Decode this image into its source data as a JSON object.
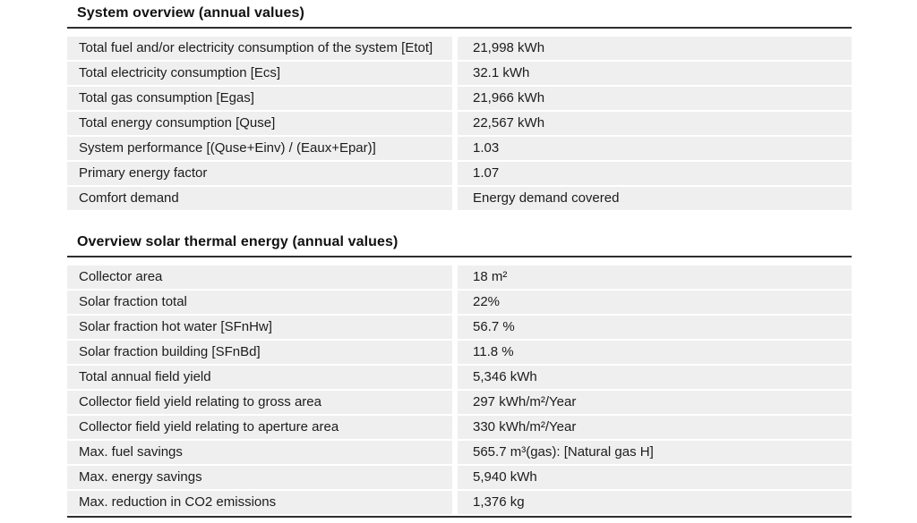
{
  "colors": {
    "row_background": "#efefef",
    "text": "#1c1c1c",
    "rule": "#2e2e2e",
    "page_background": "#ffffff"
  },
  "tables": [
    {
      "title": "System overview (annual values)",
      "rows": [
        {
          "label": "Total fuel and/or electricity consumption of the system [Etot]",
          "value": "21,998 kWh"
        },
        {
          "label": "Total electricity consumption [Ecs]",
          "value": "32.1 kWh"
        },
        {
          "label": "Total gas consumption [Egas]",
          "value": "21,966 kWh"
        },
        {
          "label": "Total energy consumption [Quse]",
          "value": "22,567 kWh"
        },
        {
          "label": "System performance [(Quse+Einv) / (Eaux+Epar)]",
          "value": "1.03"
        },
        {
          "label": "Primary energy factor",
          "value": "1.07"
        },
        {
          "label": "Comfort demand",
          "value": "Energy demand covered"
        }
      ]
    },
    {
      "title": "Overview solar thermal energy (annual values)",
      "rows": [
        {
          "label": "Collector area",
          "value": "18 m²"
        },
        {
          "label": "Solar fraction total",
          "value": "22%"
        },
        {
          "label": "Solar fraction hot water [SFnHw]",
          "value": "56.7 %"
        },
        {
          "label": "Solar fraction building [SFnBd]",
          "value": "11.8 %"
        },
        {
          "label": "Total annual field yield",
          "value": "5,346 kWh"
        },
        {
          "label": "Collector field yield relating to gross area",
          "value": "297 kWh/m²/Year"
        },
        {
          "label": "Collector field yield relating to aperture area",
          "value": "330 kWh/m²/Year"
        },
        {
          "label": "Max. fuel savings",
          "value": "565.7 m³(gas): [Natural gas H]"
        },
        {
          "label": "Max. energy savings",
          "value": "5,940 kWh"
        },
        {
          "label": "Max. reduction in CO2 emissions",
          "value": "1,376 kg"
        }
      ]
    }
  ]
}
